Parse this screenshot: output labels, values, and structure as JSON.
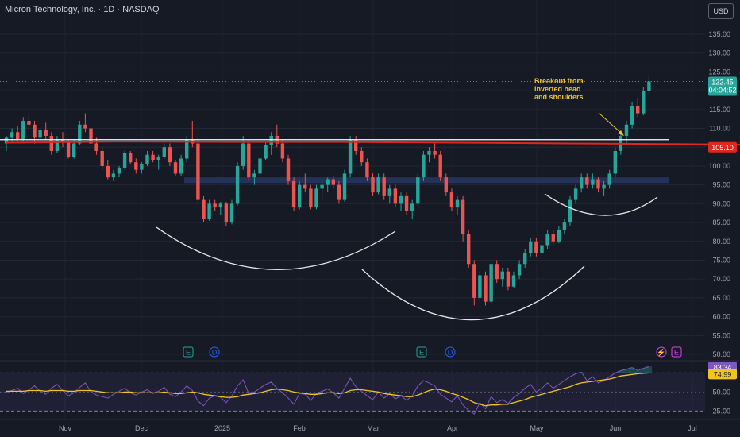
{
  "header": {
    "title": "Micron Technology, Inc. · 1D · NASDAQ",
    "currency": "USD"
  },
  "annotation": {
    "lines": [
      "Breakout from",
      "inverted head",
      "and shoulders"
    ]
  },
  "price_labels": {
    "last_price": "122.45",
    "countdown": "04:04:52",
    "ma_value": "105.10"
  },
  "rsi_labels": {
    "rsi_value": "83.34",
    "rsi_ma_value": "74.99"
  },
  "event_markers": [
    {
      "letter": "E",
      "kind": "earnings"
    },
    {
      "letter": "D",
      "kind": "dividend"
    },
    {
      "letter": "E",
      "kind": "earnings"
    },
    {
      "letter": "D",
      "kind": "dividend"
    },
    {
      "letter": "⚡",
      "kind": "split"
    },
    {
      "letter": "E",
      "kind": "earnings"
    }
  ],
  "colors": {
    "background": "#161a25",
    "up": "#26a69a",
    "down": "#ef5350",
    "ma": "#e0261d",
    "rsi": "#7e57c2",
    "rsi_ma": "#f0c419",
    "annotation": "#f0c419",
    "support_zone": "#2a3b6b"
  },
  "chart_data": {
    "type": "candlestick",
    "y_axis": {
      "ticks": [
        50,
        55,
        60,
        65,
        70,
        75,
        80,
        85,
        90,
        95,
        100,
        105,
        110,
        115,
        120,
        125,
        130,
        135
      ],
      "range": [
        48,
        140
      ]
    },
    "x_axis": {
      "labels": [
        "Nov",
        "Dec",
        "2025",
        "Feb",
        "Mar",
        "Apr",
        "May",
        "Jun",
        "Jul"
      ]
    },
    "resistance_line": 107,
    "support_zone": [
      95.5,
      97
    ],
    "ma_series": [
      [
        0,
        106.2
      ],
      [
        20,
        106.5
      ],
      [
        40,
        106.4
      ],
      [
        60,
        106.4
      ],
      [
        80,
        106.2
      ],
      [
        100,
        106.0
      ],
      [
        120,
        105.8
      ],
      [
        140,
        105.6
      ],
      [
        160,
        104.8
      ],
      [
        174,
        104.5
      ],
      [
        185,
        105.0
      ]
    ],
    "candles": [
      [
        0,
        106,
        108,
        104,
        107.5
      ],
      [
        1,
        107.5,
        110,
        106,
        109
      ],
      [
        2,
        109,
        110.5,
        106.5,
        107
      ],
      [
        3,
        107,
        113,
        106.5,
        112
      ],
      [
        4,
        112,
        114,
        110,
        111
      ],
      [
        5,
        111,
        112,
        106,
        107.5
      ],
      [
        6,
        107.5,
        110,
        106,
        109.5
      ],
      [
        7,
        109.5,
        111.5,
        107,
        108
      ],
      [
        8,
        108,
        109,
        103,
        104
      ],
      [
        9,
        104,
        108,
        103.5,
        107
      ],
      [
        10,
        107,
        109,
        105,
        106.5
      ],
      [
        11,
        106.5,
        107,
        102,
        102.5
      ],
      [
        12,
        102.5,
        107,
        102,
        106
      ],
      [
        13,
        106,
        112,
        105.5,
        111
      ],
      [
        14,
        111,
        114,
        109,
        110
      ],
      [
        15,
        110,
        111,
        105,
        106
      ],
      [
        16,
        106,
        107.5,
        103,
        104
      ],
      [
        17,
        104,
        105,
        99,
        100
      ],
      [
        18,
        100,
        101.5,
        96.5,
        97
      ],
      [
        19,
        97,
        99,
        96,
        98
      ],
      [
        20,
        98,
        100,
        97,
        99.5
      ],
      [
        21,
        99.5,
        104,
        99,
        103.5
      ],
      [
        22,
        103.5,
        104,
        100.5,
        101
      ],
      [
        23,
        101,
        102,
        98,
        99
      ],
      [
        24,
        99,
        101,
        98,
        100.5
      ],
      [
        25,
        100.5,
        104,
        100,
        103
      ],
      [
        26,
        103,
        104,
        101,
        101.5
      ],
      [
        27,
        101.5,
        103,
        99,
        102.5
      ],
      [
        28,
        102.5,
        106,
        102,
        105
      ],
      [
        29,
        105,
        106,
        100,
        101
      ],
      [
        30,
        101,
        101.5,
        97.5,
        98
      ],
      [
        31,
        98,
        103,
        97.5,
        102
      ],
      [
        32,
        102,
        108,
        101,
        107
      ],
      [
        33,
        107,
        112,
        105,
        106
      ],
      [
        34,
        106,
        108,
        90,
        91
      ],
      [
        35,
        91,
        92,
        85,
        86
      ],
      [
        36,
        86,
        91,
        85.5,
        90
      ],
      [
        37,
        90,
        91,
        88,
        89
      ],
      [
        38,
        89,
        90.5,
        87,
        90
      ],
      [
        39,
        90,
        90.5,
        84,
        85
      ],
      [
        40,
        85,
        91,
        84.5,
        90
      ],
      [
        41,
        90,
        101,
        89.5,
        100
      ],
      [
        42,
        100,
        108,
        99,
        106
      ],
      [
        43,
        106,
        107,
        96,
        97
      ],
      [
        44,
        97,
        99,
        95,
        98
      ],
      [
        45,
        98,
        103,
        97,
        102
      ],
      [
        46,
        102,
        106.5,
        101.5,
        105.5
      ],
      [
        47,
        105.5,
        109,
        103,
        108
      ],
      [
        48,
        108,
        111,
        105,
        106
      ],
      [
        49,
        106,
        107,
        101,
        102
      ],
      [
        50,
        102,
        103,
        95,
        96
      ],
      [
        51,
        96,
        97,
        88,
        89
      ],
      [
        52,
        89,
        96,
        88.5,
        95
      ],
      [
        53,
        95,
        98,
        93,
        94
      ],
      [
        54,
        94,
        95,
        88.5,
        89
      ],
      [
        55,
        89,
        95,
        88.5,
        94
      ],
      [
        56,
        94,
        96,
        91,
        95
      ],
      [
        57,
        95,
        97,
        93,
        96.5
      ],
      [
        58,
        96.5,
        97.5,
        94,
        95
      ],
      [
        59,
        95,
        96,
        90,
        91
      ],
      [
        60,
        91,
        99,
        90.5,
        98
      ],
      [
        61,
        98,
        108,
        97,
        107
      ],
      [
        62,
        107,
        108,
        103,
        104
      ],
      [
        63,
        104,
        105,
        100,
        101
      ],
      [
        64,
        101,
        102,
        96,
        97
      ],
      [
        65,
        97,
        98,
        92,
        93
      ],
      [
        66,
        93,
        98,
        92.5,
        97
      ],
      [
        67,
        97,
        98,
        91,
        92
      ],
      [
        68,
        92,
        95,
        90,
        94
      ],
      [
        69,
        94,
        95,
        89,
        90
      ],
      [
        70,
        90,
        93,
        88,
        92
      ],
      [
        71,
        92,
        93,
        87,
        88
      ],
      [
        72,
        88,
        91,
        86,
        90
      ],
      [
        73,
        90,
        98,
        89.5,
        97
      ],
      [
        74,
        97,
        104,
        96,
        103
      ],
      [
        75,
        103,
        105,
        101,
        104
      ],
      [
        76,
        104,
        106,
        102,
        103
      ],
      [
        77,
        103,
        104,
        96,
        97
      ],
      [
        78,
        97,
        98,
        92,
        93
      ],
      [
        79,
        93,
        94,
        88,
        89
      ],
      [
        80,
        89,
        92,
        87,
        91
      ],
      [
        81,
        91,
        92,
        80,
        82
      ],
      [
        82,
        82,
        83,
        73,
        74
      ],
      [
        83,
        74,
        75,
        63,
        65
      ],
      [
        84,
        65,
        72,
        64,
        71
      ],
      [
        85,
        71,
        72,
        63,
        64
      ],
      [
        86,
        64,
        75,
        63.5,
        74
      ],
      [
        87,
        74,
        75,
        69,
        70
      ],
      [
        88,
        70,
        73,
        68,
        72
      ],
      [
        89,
        72,
        73,
        67,
        68
      ],
      [
        90,
        68,
        72,
        67.5,
        71
      ],
      [
        91,
        71,
        75,
        70,
        74
      ],
      [
        92,
        74,
        78,
        73,
        77
      ],
      [
        93,
        77,
        81,
        76,
        80
      ],
      [
        94,
        80,
        81,
        76,
        77
      ],
      [
        95,
        77,
        80,
        76,
        79
      ],
      [
        96,
        79,
        83,
        78,
        82
      ],
      [
        97,
        82,
        83,
        79,
        80
      ],
      [
        98,
        80,
        84,
        79.5,
        83
      ],
      [
        99,
        83,
        86,
        82,
        85
      ],
      [
        100,
        85,
        92,
        84,
        91
      ],
      [
        101,
        91,
        95,
        90,
        94
      ],
      [
        102,
        94,
        98,
        93,
        97
      ],
      [
        103,
        97,
        98,
        94,
        95
      ],
      [
        104,
        95,
        98,
        94,
        96.5
      ],
      [
        105,
        96.5,
        97,
        93,
        94
      ],
      [
        106,
        94,
        96,
        92,
        95
      ],
      [
        107,
        95,
        99,
        94,
        98
      ],
      [
        108,
        98,
        105,
        97,
        104
      ],
      [
        109,
        104,
        109,
        103,
        108
      ],
      [
        110,
        108,
        112,
        106,
        111
      ],
      [
        111,
        111,
        117,
        110,
        116
      ],
      [
        112,
        116,
        118,
        113,
        114
      ],
      [
        113,
        114,
        121,
        113.5,
        120
      ],
      [
        114,
        120,
        124,
        119,
        122.45
      ]
    ],
    "rsi": {
      "levels": [
        25,
        50,
        75
      ],
      "ticks": [
        25,
        50,
        75
      ],
      "range": [
        15,
        90
      ],
      "series": [
        50,
        52,
        55,
        48,
        53,
        58,
        51,
        47,
        55,
        60,
        52,
        45,
        49,
        56,
        62,
        50,
        46,
        44,
        42,
        47,
        51,
        55,
        49,
        46,
        50,
        53,
        48,
        51,
        56,
        47,
        44,
        50,
        58,
        52,
        38,
        32,
        42,
        45,
        43,
        36,
        45,
        58,
        66,
        48,
        50,
        55,
        60,
        63,
        55,
        49,
        42,
        34,
        48,
        47,
        39,
        48,
        51,
        54,
        49,
        42,
        55,
        68,
        57,
        51,
        45,
        40,
        50,
        42,
        48,
        41,
        45,
        39,
        45,
        58,
        65,
        62,
        58,
        47,
        42,
        37,
        45,
        33,
        26,
        21,
        36,
        28,
        44,
        36,
        40,
        35,
        43,
        48,
        55,
        60,
        50,
        55,
        62,
        55,
        60,
        65,
        70,
        74,
        76,
        65,
        70,
        62,
        65,
        70,
        75,
        78,
        80,
        82,
        78,
        81,
        83.34
      ],
      "ma_series": [
        51,
        51,
        51,
        51,
        52,
        52,
        52,
        51,
        52,
        52,
        52,
        51,
        51,
        52,
        52,
        52,
        51,
        50,
        49,
        49,
        49,
        50,
        50,
        49,
        49,
        49,
        49,
        49,
        50,
        49,
        48,
        48,
        49,
        50,
        49,
        47,
        46,
        45,
        44,
        43,
        43,
        44,
        46,
        47,
        48,
        49,
        51,
        53,
        54,
        53,
        52,
        50,
        49,
        48,
        47,
        47,
        48,
        49,
        49,
        48,
        49,
        52,
        53,
        53,
        52,
        51,
        50,
        48,
        47,
        46,
        45,
        44,
        44,
        46,
        49,
        52,
        54,
        53,
        51,
        48,
        46,
        43,
        40,
        36,
        34,
        32,
        33,
        33,
        34,
        34,
        36,
        38,
        40,
        43,
        45,
        47,
        49,
        51,
        53,
        55,
        57,
        60,
        62,
        63,
        64,
        65,
        66,
        67,
        69,
        71,
        72,
        73,
        74,
        74.5,
        74.99
      ]
    }
  }
}
